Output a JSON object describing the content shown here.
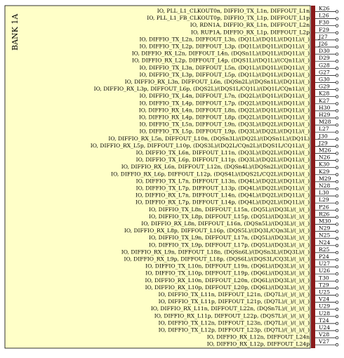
{
  "bank_label": "BANK 1A",
  "colors": {
    "box_fill": "#ffffc8",
    "box_stroke": "#8a1a1a",
    "wire": "#000000"
  },
  "pins": [
    {
      "signal": "IO, PLL_L1_CLKOUT0n, DIFFIO_TX_L1n, DIFFOUT_L1n",
      "pin": "K26"
    },
    {
      "signal": "IO, PLL_L1_FB_CLKOUT0p, DIFFIO_TX_L1p, DIFFOUT_L1p",
      "pin": "L26"
    },
    {
      "signal": "IO, RDN1A, DIFFIO_RX_L1n, DIFFOUT_L2n",
      "pin": "F30"
    },
    {
      "signal": "IO, RUP1A, DIFFIO_RX_L1p, DIFFOUT_L2p",
      "pin": "F29"
    },
    {
      "signal": "IO, DIFFIO_TX_L2n, DIFFOUT_L3n, (DQ1L)/(DQ1L)/(DQ1L)/(_)",
      "pin": "J27"
    },
    {
      "signal": "IO, DIFFIO_TX_L2p, DIFFOUT_L3p, (DQ1L)/(DQ1L)/(DQ1L)/(_)",
      "pin": "J26"
    },
    {
      "signal": "IO, DIFFIO_RX_L2n, DIFFOUT_L4n, (DQSn1L)/(DQ1L)/(DQ1L)/(_)",
      "pin": "D30"
    },
    {
      "signal": "IO, DIFFIO_RX_L2p, DIFFOUT_L4p, (DQS1L)/(DQ1L)/(CQn1L)/(_)",
      "pin": "D29"
    },
    {
      "signal": "IO, DIFFIO_TX_L3n, DIFFOUT_L5n, (DQ1L)/(DQ1L)/(DQ1L)/(_)",
      "pin": "G28"
    },
    {
      "signal": "IO, DIFFIO_TX_L3p, DIFFOUT_L5p, (DQ1L)/(DQ1L)/(DQ1L)/(_)",
      "pin": "G27"
    },
    {
      "signal": "IO, DIFFIO_RX_L3n, DIFFOUT_L6n, (DQSn2L)/(DQSn1L)/(DQ1L)/(_)",
      "pin": "G30"
    },
    {
      "signal": "IO, DIFFIO_RX_L3p, DIFFOUT_L6p, (DQS2L)/(DQS1L/CQ1L)/(DQ1L/CQn1L)/(_)",
      "pin": "G29"
    },
    {
      "signal": "IO, DIFFIO_TX_L4n, DIFFOUT_L7n, (DQ2L)/(DQ1L)/(DQ1L)/(_)",
      "pin": "K28"
    },
    {
      "signal": "IO, DIFFIO_TX_L4p, DIFFOUT_L7p, (DQ2L)/(DQ1L)/(DQ1L)/(_)",
      "pin": "K27"
    },
    {
      "signal": "IO, DIFFIO_RX_L4n, DIFFOUT_L8n, (DQ2L)/(DQ1L)/(DQ1L)/(_)",
      "pin": "H30"
    },
    {
      "signal": "IO, DIFFIO_RX_L4p, DIFFOUT_L8p, (DQ2L)/(DQ1L)/(DQ1L)/(_)",
      "pin": "H29"
    },
    {
      "signal": "IO, DIFFIO_TX_L5n, DIFFOUT_L9n, (DQ3L)/(DQ2L)/(DQ1L)/(_)",
      "pin": "M28"
    },
    {
      "signal": "IO, DIFFIO_TX_L5p, DIFFOUT_L9p, (DQ3L)/(DQ2L)/(DQ1L)/(_)",
      "pin": "L27"
    },
    {
      "signal": "IO, DIFFIO_RX_L5n, DIFFOUT_L10n, (DQSn3L)/(DQ2L)/(DQSn1L)/(DQ1L)",
      "pin": "J30"
    },
    {
      "signal": "IO, DIFFIO_RX_L5p, DIFFOUT_L10p, (DQS3L)/(DQ2L/CQn2L)/(DQS1L/CQ1L)/(_)",
      "pin": "J29"
    },
    {
      "signal": "IO, DIFFIO_TX_L6n, DIFFOUT_L11n, (DQ3L)/(DQ2L)/(DQ1L)/(_)",
      "pin": "M26"
    },
    {
      "signal": "IO, DIFFIO_TX_L6p, DIFFOUT_L11p, (DQ3L)/(DQ2L)/(DQ1L)/(_)",
      "pin": "N26"
    },
    {
      "signal": "IO, DIFFIO_RX_L6n, DIFFOUT_L12n, (DQSn4L)/(DQSn2L)/(DQ1L)/(_)",
      "pin": "K30"
    },
    {
      "signal": "IO, DIFFIO_RX_L6p, DIFFOUT_L12p, (DQS4L)/(DQS2L/CQ2L)/(DQ1L)/(_)",
      "pin": "K29"
    },
    {
      "signal": "IO, DIFFIO_TX_L7n, DIFFOUT_L13n, (DQ4L)/(DQ2L)/(DQ1L)/(_)",
      "pin": "M29"
    },
    {
      "signal": "IO, DIFFIO_TX_L7p, DIFFOUT_L13p, (DQ4L)/(DQ2L)/(DQ1L)/(_)",
      "pin": "N28"
    },
    {
      "signal": "IO, DIFFIO_RX_L7n, DIFFOUT_L14n, (DQ4L)/(DQ2L)/(DQ1L)/(_)",
      "pin": "L30"
    },
    {
      "signal": "IO, DIFFIO_RX_L7p, DIFFOUT_L14p, (DQ4L)/(DQ2L)/(DQ1L)/(_)",
      "pin": "L29"
    },
    {
      "signal": "IO, DIFFIO_TX_L8n, DIFFOUT_L15n, (DQ5L)/(DQ3L)/(_)/(_)",
      "pin": "P26"
    },
    {
      "signal": "IO, DIFFIO_TX_L8p, DIFFOUT_L15p, (DQ5L)/(DQ3L)/(_)/(_)",
      "pin": "R26"
    },
    {
      "signal": "IO, DIFFIO_RX_L8n, DIFFOUT_L16n, (DQSn5L)/(DQ3L)/(_)/(_)",
      "pin": "M30"
    },
    {
      "signal": "IO, DIFFIO_RX_L8p, DIFFOUT_L16p, (DQS5L)/(DQ3L/CQn3L)/(_)/(_)",
      "pin": "N29"
    },
    {
      "signal": "IO, DIFFIO_TX_L9n, DIFFOUT_L17n, (DQ5L)/(DQ3L)/(_)/(_)",
      "pin": "N25"
    },
    {
      "signal": "IO, DIFFIO_TX_L9p, DIFFOUT_L17p, (DQ5L)/(DQ3L)/(_)/(_)",
      "pin": "N24"
    },
    {
      "signal": "IO, DIFFIO_RX_L9n, DIFFOUT_L18n, (DQSn6L)/(DQSn3L)/(DQ3L)/(_)",
      "pin": "R25"
    },
    {
      "signal": "IO, DIFFIO_RX_L9p, DIFFOUT_L18p, (DQS6L)/(DQS3L/CQ3L)/(_)/(_)",
      "pin": "P24"
    },
    {
      "signal": "IO, DIFFIO_TX_L10n, DIFFOUT_L19n, (DQ6L)/(DQ3L)/(_)/(_)",
      "pin": "U27"
    },
    {
      "signal": "IO, DIFFIO_TX_L10p, DIFFOUT_L19p, (DQ6L)/(DQ3L)/(_)/(_)",
      "pin": "U26"
    },
    {
      "signal": "IO, DIFFIO_RX_L10n, DIFFOUT_L20n, (DQ6L)/(DQ3L)/(_)/(_)",
      "pin": "T30"
    },
    {
      "signal": "IO, DIFFIO_RX_L10p, DIFFOUT_L20p, (DQ6L)/(DQ3L)/(_)/(_)",
      "pin": "T29"
    },
    {
      "signal": "IO, DIFFIO_TX_L11n, DIFFOUT_L21n, (DQ7L)/(_)/(_)/(_)",
      "pin": "U25"
    },
    {
      "signal": "IO, DIFFIO_TX_L11p, DIFFOUT_L21p, (DQ7L)/(_)/(_)/(_)",
      "pin": "V24"
    },
    {
      "signal": "IO, DIFFIO_RX_L11n, DIFFOUT_L22n, (DQSn7L)/(_)/(_)/(_)",
      "pin": "U29"
    },
    {
      "signal": "IO, DIFFIO_RX_L11p, DIFFOUT_L22p, (DQS7L)/(_)/(_)/(_)",
      "pin": "U28"
    },
    {
      "signal": "IO, DIFFIO_TX_L12n, DIFFOUT_L23n, (DQ7L)/(_)/(_)/(_)",
      "pin": "T24"
    },
    {
      "signal": "IO, DIFFIO_TX_L12p, DIFFOUT_L23p, (DQ7L)/(_)/(_)/(_)",
      "pin": "U24"
    },
    {
      "signal": "IO, DIFFIO_RX_L12n, DIFFOUT_L24n",
      "pin": "V28"
    },
    {
      "signal": "IO, DIFFIO_RX_L12p, DIFFOUT_L24p",
      "pin": "V27"
    }
  ]
}
